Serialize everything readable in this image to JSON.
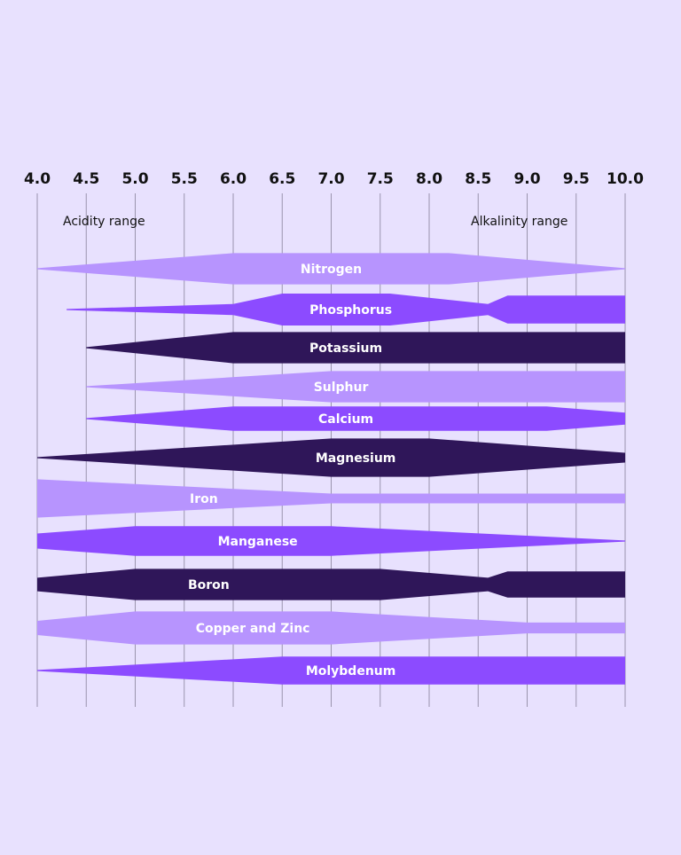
{
  "chart_data": {
    "type": "area",
    "x_ticks": [
      "4.0",
      "4.5",
      "5.0",
      "5.5",
      "6.0",
      "6.5",
      "7.0",
      "7.5",
      "8.0",
      "8.5",
      "9.0",
      "9.5",
      "10.0"
    ],
    "xlim": [
      4.0,
      10.0
    ],
    "annotations": {
      "acidity": "Acidity range",
      "alkalinity": "Alkalinity range"
    },
    "colors": {
      "background": "#e8e1fe",
      "grid": "#9a94ad",
      "light": "#b794fe",
      "medium": "#8c4bff",
      "dark": "#2f1659"
    },
    "series": [
      {
        "name": "Nitrogen",
        "color": "light",
        "points": [
          [
            4.0,
            0.0
          ],
          [
            6.0,
            0.98
          ],
          [
            8.2,
            0.98
          ],
          [
            10.0,
            0.0
          ]
        ]
      },
      {
        "name": "Phosphorus",
        "color": "medium",
        "points": [
          [
            4.3,
            0.0
          ],
          [
            6.0,
            0.35
          ],
          [
            6.5,
            1.0
          ],
          [
            7.6,
            1.0
          ],
          [
            8.6,
            0.35
          ],
          [
            8.8,
            0.88
          ],
          [
            10.0,
            0.88
          ]
        ]
      },
      {
        "name": "Potassium",
        "color": "dark",
        "points": [
          [
            4.5,
            0.0
          ],
          [
            6.0,
            0.98
          ],
          [
            10.0,
            0.98
          ]
        ]
      },
      {
        "name": "Sulphur",
        "color": "light",
        "points": [
          [
            4.5,
            0.0
          ],
          [
            7.0,
            0.98
          ],
          [
            10.0,
            0.98
          ]
        ]
      },
      {
        "name": "Calcium",
        "color": "medium",
        "points": [
          [
            4.5,
            0.0
          ],
          [
            6.0,
            0.98
          ],
          [
            9.2,
            0.98
          ],
          [
            10.0,
            0.48
          ]
        ]
      },
      {
        "name": "Magnesium",
        "color": "dark",
        "points": [
          [
            4.0,
            0.0
          ],
          [
            7.0,
            0.98
          ],
          [
            8.0,
            0.98
          ],
          [
            10.0,
            0.25
          ]
        ]
      },
      {
        "name": "Iron",
        "color": "light",
        "points": [
          [
            4.0,
            0.98
          ],
          [
            7.0,
            0.25
          ],
          [
            10.0,
            0.25
          ]
        ]
      },
      {
        "name": "Manganese",
        "color": "medium",
        "points": [
          [
            4.0,
            0.5
          ],
          [
            5.0,
            0.98
          ],
          [
            7.0,
            0.98
          ],
          [
            10.0,
            0.0
          ]
        ]
      },
      {
        "name": "Boron",
        "color": "dark",
        "points": [
          [
            4.0,
            0.42
          ],
          [
            5.0,
            0.98
          ],
          [
            7.5,
            0.98
          ],
          [
            8.6,
            0.42
          ],
          [
            8.8,
            0.82
          ],
          [
            10.0,
            0.82
          ]
        ]
      },
      {
        "name": "Copper and Zinc",
        "color": "light",
        "points": [
          [
            4.0,
            0.42
          ],
          [
            5.0,
            0.98
          ],
          [
            7.0,
            0.98
          ],
          [
            9.0,
            0.32
          ],
          [
            10.0,
            0.32
          ]
        ]
      },
      {
        "name": "Molybdenum",
        "color": "medium",
        "points": [
          [
            4.0,
            0.0
          ],
          [
            6.5,
            0.98
          ],
          [
            10.0,
            0.98
          ]
        ]
      }
    ]
  }
}
